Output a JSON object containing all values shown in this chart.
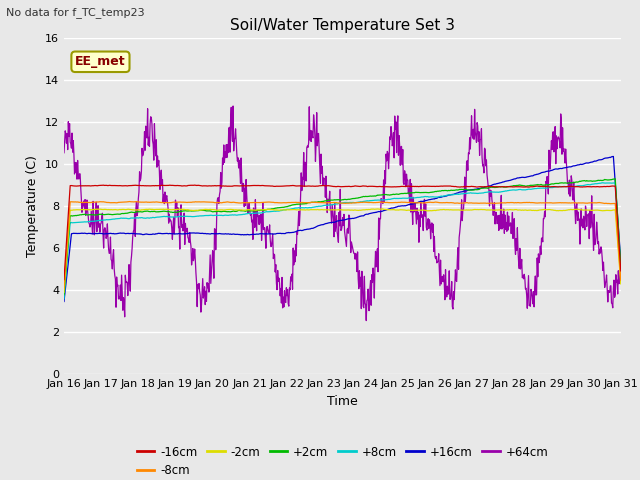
{
  "title": "Soil/Water Temperature Set 3",
  "top_left_text": "No data for f_TC_temp23",
  "annotation_box": "EE_met",
  "xlabel": "Time",
  "ylabel": "Temperature (C)",
  "ylim": [
    0,
    16
  ],
  "yticks": [
    0,
    2,
    4,
    6,
    8,
    10,
    12,
    14,
    16
  ],
  "xlim": [
    0,
    15
  ],
  "bg_color": "#e8e8e8",
  "plot_bg_color": "#e8e8e8",
  "series": [
    {
      "label": "-16cm",
      "color": "#cc0000"
    },
    {
      "label": "-8cm",
      "color": "#ff8800"
    },
    {
      "label": "-2cm",
      "color": "#dddd00"
    },
    {
      "label": "+2cm",
      "color": "#00bb00"
    },
    {
      "label": "+8cm",
      "color": "#00cccc"
    },
    {
      "label": "+16cm",
      "color": "#0000cc"
    },
    {
      "label": "+64cm",
      "color": "#9900aa"
    }
  ],
  "xtick_labels": [
    "Jan 16",
    "Jan 17",
    "Jan 18",
    "Jan 19",
    "Jan 20",
    "Jan 21",
    "Jan 22",
    "Jan 23",
    "Jan 24",
    "Jan 25",
    "Jan 26",
    "Jan 27",
    "Jan 28",
    "Jan 29",
    "Jan 30",
    "Jan 31"
  ]
}
